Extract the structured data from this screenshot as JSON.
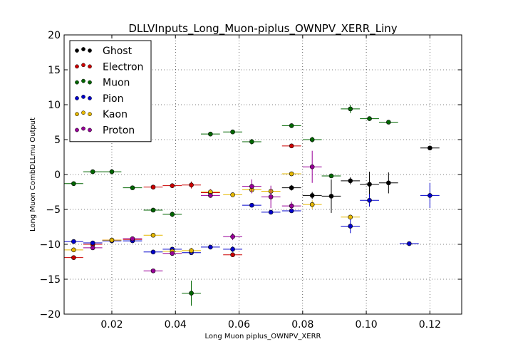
{
  "chart_data": {
    "type": "scatter",
    "title": "DLLVInputs_Long_Muon-piplus_OWNPV_XERR_Liny",
    "xlabel": "Long Muon piplus_OWNPV_XERR",
    "ylabel": "Long Muon CombDLLmu Output",
    "xlim": [
      0.005,
      0.13
    ],
    "ylim": [
      -20,
      20
    ],
    "xticks": [
      0.02,
      0.04,
      0.06,
      0.08,
      0.1,
      0.12
    ],
    "xtick_labels": [
      "0.02",
      "0.04",
      "0.06",
      "0.08",
      "0.10",
      "0.12"
    ],
    "yticks": [
      -20,
      -15,
      -10,
      -5,
      0,
      5,
      10,
      15,
      20
    ],
    "ytick_labels": [
      "−20",
      "−15",
      "−10",
      "−5",
      "0",
      "5",
      "10",
      "15",
      "20"
    ],
    "grid": true,
    "legend_position": "top-left",
    "x_error": 0.003,
    "series": [
      {
        "name": "Ghost",
        "color": "#000000",
        "points": [
          {
            "x": 0.0765,
            "y": -1.9,
            "yerr": 0.4
          },
          {
            "x": 0.083,
            "y": -3.0,
            "yerr": 0.5
          },
          {
            "x": 0.089,
            "y": -3.1,
            "yerr": 2.4
          },
          {
            "x": 0.095,
            "y": -0.9,
            "yerr": 0.5
          },
          {
            "x": 0.101,
            "y": -1.4,
            "yerr": 1.8
          },
          {
            "x": 0.107,
            "y": -1.2,
            "yerr": 1.5
          },
          {
            "x": 0.12,
            "y": 3.8,
            "yerr": 0.2
          }
        ]
      },
      {
        "name": "Electron",
        "color": "#cc0000",
        "points": [
          {
            "x": 0.008,
            "y": -11.9,
            "yerr": 0.2
          },
          {
            "x": 0.014,
            "y": -10.0,
            "yerr": 0.2
          },
          {
            "x": 0.02,
            "y": -9.4,
            "yerr": 0.2
          },
          {
            "x": 0.0265,
            "y": -9.3,
            "yerr": 0.2
          },
          {
            "x": 0.033,
            "y": -1.8,
            "yerr": 0.2
          },
          {
            "x": 0.039,
            "y": -1.6,
            "yerr": 0.2
          },
          {
            "x": 0.045,
            "y": -1.5,
            "yerr": 0.5
          },
          {
            "x": 0.051,
            "y": -2.6,
            "yerr": 0.5
          },
          {
            "x": 0.058,
            "y": -11.5,
            "yerr": 0.2
          },
          {
            "x": 0.0765,
            "y": 4.1,
            "yerr": 0.2
          }
        ]
      },
      {
        "name": "Muon",
        "color": "#006600",
        "points": [
          {
            "x": 0.008,
            "y": -1.3,
            "yerr": 0.1
          },
          {
            "x": 0.014,
            "y": 0.4,
            "yerr": 0.1
          },
          {
            "x": 0.02,
            "y": 0.4,
            "yerr": 0.1
          },
          {
            "x": 0.0265,
            "y": -1.9,
            "yerr": 0.1
          },
          {
            "x": 0.033,
            "y": -5.1,
            "yerr": 0.2
          },
          {
            "x": 0.039,
            "y": -5.7,
            "yerr": 0.4
          },
          {
            "x": 0.045,
            "y": -17.0,
            "yerr": 1.8
          },
          {
            "x": 0.051,
            "y": 5.8,
            "yerr": 0.2
          },
          {
            "x": 0.058,
            "y": 6.1,
            "yerr": 0.3
          },
          {
            "x": 0.064,
            "y": 4.7,
            "yerr": 0.4
          },
          {
            "x": 0.0765,
            "y": 7.0,
            "yerr": 0.2
          },
          {
            "x": 0.083,
            "y": 5.0,
            "yerr": 0.4
          },
          {
            "x": 0.089,
            "y": -0.2,
            "yerr": 0.2
          },
          {
            "x": 0.095,
            "y": 9.4,
            "yerr": 0.6
          },
          {
            "x": 0.101,
            "y": 8.0,
            "yerr": 0.2
          },
          {
            "x": 0.107,
            "y": 7.5,
            "yerr": 0.2
          }
        ]
      },
      {
        "name": "Pion",
        "color": "#0000cc",
        "points": [
          {
            "x": 0.008,
            "y": -9.6,
            "yerr": 0.1
          },
          {
            "x": 0.014,
            "y": -9.8,
            "yerr": 0.1
          },
          {
            "x": 0.02,
            "y": -9.5,
            "yerr": 0.1
          },
          {
            "x": 0.0265,
            "y": -9.5,
            "yerr": 0.1
          },
          {
            "x": 0.033,
            "y": -11.1,
            "yerr": 0.2
          },
          {
            "x": 0.039,
            "y": -10.7,
            "yerr": 0.2
          },
          {
            "x": 0.045,
            "y": -11.2,
            "yerr": 0.3
          },
          {
            "x": 0.051,
            "y": -10.4,
            "yerr": 0.2
          },
          {
            "x": 0.058,
            "y": -10.7,
            "yerr": 0.4
          },
          {
            "x": 0.064,
            "y": -4.4,
            "yerr": 0.2
          },
          {
            "x": 0.07,
            "y": -5.4,
            "yerr": 0.2
          },
          {
            "x": 0.0765,
            "y": -5.2,
            "yerr": 0.3
          },
          {
            "x": 0.095,
            "y": -7.4,
            "yerr": 1.0
          },
          {
            "x": 0.101,
            "y": -3.7,
            "yerr": 0.9
          },
          {
            "x": 0.1135,
            "y": -9.9,
            "yerr": 0.1
          },
          {
            "x": 0.12,
            "y": -3.0,
            "yerr": 1.8
          }
        ]
      },
      {
        "name": "Kaon",
        "color": "#e6b800",
        "points": [
          {
            "x": 0.008,
            "y": -10.8,
            "yerr": 0.2
          },
          {
            "x": 0.02,
            "y": -9.4,
            "yerr": 0.2
          },
          {
            "x": 0.033,
            "y": -8.7,
            "yerr": 0.2
          },
          {
            "x": 0.039,
            "y": -11.0,
            "yerr": 0.3
          },
          {
            "x": 0.045,
            "y": -10.9,
            "yerr": 0.4
          },
          {
            "x": 0.051,
            "y": -2.5,
            "yerr": 0.3
          },
          {
            "x": 0.058,
            "y": -2.9,
            "yerr": 0.2
          },
          {
            "x": 0.064,
            "y": -2.2,
            "yerr": 0.3
          },
          {
            "x": 0.07,
            "y": -2.4,
            "yerr": 0.3
          },
          {
            "x": 0.0765,
            "y": 0.1,
            "yerr": 0.2
          },
          {
            "x": 0.083,
            "y": -4.3,
            "yerr": 0.6
          },
          {
            "x": 0.095,
            "y": -6.1,
            "yerr": 0.3
          }
        ]
      },
      {
        "name": "Proton",
        "color": "#990099",
        "points": [
          {
            "x": 0.014,
            "y": -10.5,
            "yerr": 0.2
          },
          {
            "x": 0.0265,
            "y": -9.2,
            "yerr": 0.2
          },
          {
            "x": 0.033,
            "y": -13.8,
            "yerr": 0.2
          },
          {
            "x": 0.039,
            "y": -11.3,
            "yerr": 0.3
          },
          {
            "x": 0.051,
            "y": -3.0,
            "yerr": 0.3
          },
          {
            "x": 0.058,
            "y": -8.9,
            "yerr": 0.5
          },
          {
            "x": 0.064,
            "y": -1.7,
            "yerr": 1.0
          },
          {
            "x": 0.07,
            "y": -3.2,
            "yerr": 1.6
          },
          {
            "x": 0.0765,
            "y": -4.5,
            "yerr": 0.6
          },
          {
            "x": 0.083,
            "y": 1.1,
            "yerr": 2.3
          }
        ]
      }
    ]
  }
}
